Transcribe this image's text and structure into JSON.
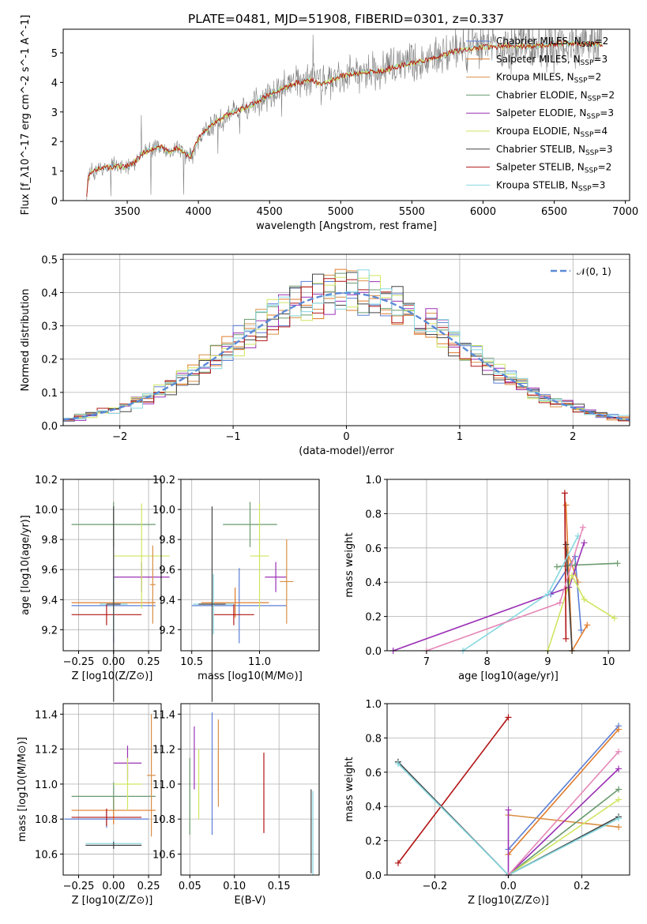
{
  "figure": {
    "title": "PLATE=0481, MJD=51908, FIBERID=0301, z=0.337"
  },
  "colors": {
    "Chabrier MILES": "#5b7fd6",
    "Salpeter MILES": "#e07b2a",
    "Kroupa MILES": "#d98f45",
    "Chabrier ELODIE": "#6a9a6e",
    "Salpeter ELODIE": "#9b30b5",
    "Kroupa ELODIE": "#cfe660",
    "Chabrier STELIB": "#444444",
    "Salpeter STELIB": "#b21414",
    "Kroupa STELIB": "#86d8e0",
    "normal": "#5b8ad6",
    "observed": "#808080"
  },
  "chart_data": [
    {
      "id": "spectrum",
      "type": "line",
      "xlabel": "wavelength [Angstrom, rest frame]",
      "ylabel": "Flux [f_λ10^-17 erg cm^-2 s^-1 A^-1]",
      "xlim": [
        3050,
        7030
      ],
      "ylim": [
        0,
        5.8
      ],
      "xticks": [
        "3500",
        "4000",
        "4500",
        "5000",
        "5500",
        "6000",
        "6500",
        "7000"
      ],
      "yticks": [
        "0",
        "1",
        "2",
        "3",
        "4",
        "5"
      ],
      "legend_position": "upper right",
      "legend": [
        {
          "name": "Chabrier MILES",
          "nssp": "2"
        },
        {
          "name": "Salpeter MILES",
          "nssp": "3"
        },
        {
          "name": "Kroupa MILES",
          "nssp": "2"
        },
        {
          "name": "Chabrier ELODIE",
          "nssp": "2"
        },
        {
          "name": "Salpeter ELODIE",
          "nssp": "3"
        },
        {
          "name": "Kroupa ELODIE",
          "nssp": "4"
        },
        {
          "name": "Chabrier STELIB",
          "nssp": "3"
        },
        {
          "name": "Salpeter STELIB",
          "nssp": "2"
        },
        {
          "name": "Kroupa STELIB",
          "nssp": "3"
        }
      ],
      "model_continuum": {
        "x": [
          3210,
          3230,
          3300,
          3400,
          3500,
          3550,
          3600,
          3650,
          3700,
          3750,
          3800,
          3850,
          3900,
          3950,
          4000,
          4100,
          4200,
          4300,
          4400,
          4500,
          4600,
          4700,
          4800,
          4860,
          4900,
          5000,
          5100,
          5200,
          5300,
          5400,
          5500,
          5600,
          5700,
          5800,
          5900,
          6000,
          6100,
          6200,
          6300,
          6400,
          6500,
          6600,
          6700,
          6830
        ],
        "y": [
          0.0,
          0.9,
          1.1,
          1.15,
          1.15,
          1.3,
          1.55,
          1.7,
          1.8,
          1.8,
          1.6,
          1.8,
          1.6,
          1.5,
          2.1,
          2.6,
          2.9,
          3.1,
          3.3,
          3.6,
          3.8,
          4.0,
          4.1,
          3.9,
          4.0,
          4.2,
          4.3,
          4.35,
          4.4,
          4.55,
          4.65,
          4.75,
          4.9,
          5.05,
          5.15,
          5.2,
          5.2,
          5.25,
          5.2,
          5.25,
          5.3,
          5.35,
          5.3,
          5.3
        ]
      }
    },
    {
      "id": "residual-histogram",
      "type": "line",
      "xlabel": "(data-model)/error",
      "ylabel": "Normed distribution",
      "xlim": [
        -2.5,
        2.5
      ],
      "ylim": [
        0,
        0.515
      ],
      "xticks": [
        "−2",
        "−1",
        "0",
        "1",
        "2"
      ],
      "yticks": [
        "0.0",
        "0.1",
        "0.2",
        "0.3",
        "0.4",
        "0.5"
      ],
      "grid": true,
      "legend": [
        "𝒩(0, 1)"
      ],
      "bin_width": 0.1,
      "bin_start": -2.5,
      "series": [
        {
          "name": "Chabrier MILES",
          "offset": 0.0
        },
        {
          "name": "Salpeter MILES",
          "offset": 0.015
        },
        {
          "name": "Kroupa MILES",
          "offset": -0.01
        },
        {
          "name": "Chabrier ELODIE",
          "offset": 0.02
        },
        {
          "name": "Salpeter ELODIE",
          "offset": -0.015
        },
        {
          "name": "Kroupa ELODIE",
          "offset": 0.01
        },
        {
          "name": "Chabrier STELIB",
          "offset": -0.02
        },
        {
          "name": "Salpeter STELIB",
          "offset": 0.005
        },
        {
          "name": "Kroupa STELIB",
          "offset": -0.005
        }
      ]
    },
    {
      "id": "z-age",
      "type": "scatter",
      "xlabel": "Z [log10(Z/Z⊙)]",
      "ylabel": "age [log10(age/yr)]",
      "xlim": [
        -0.36,
        0.34
      ],
      "ylim": [
        9.06,
        10.2
      ],
      "xticks": [
        "−0.25",
        "0.00",
        "0.25"
      ],
      "yticks": [
        "9.2",
        "9.4",
        "9.6",
        "9.8",
        "10.0",
        "10.2"
      ],
      "points": [
        {
          "series": "Chabrier MILES",
          "x": 0.0,
          "y": 9.36,
          "xerr": 0.3,
          "yerr": 0.25
        },
        {
          "series": "Salpeter MILES",
          "x": 0.0,
          "y": 9.38,
          "xerr": 0.3,
          "yerr": 0.1
        },
        {
          "series": "Chabrier ELODIE",
          "x": 0.0,
          "y": 9.9,
          "xerr": 0.3,
          "yerr": 0.15
        },
        {
          "series": "Salpeter ELODIE",
          "x": 0.2,
          "y": 9.55,
          "xerr": 0.2,
          "yerr": 0.1
        },
        {
          "series": "Kroupa ELODIE",
          "x": 0.2,
          "y": 9.69,
          "xerr": 0.2,
          "yerr": 0.35
        },
        {
          "series": "Salpeter STELIB",
          "x": -0.05,
          "y": 9.3,
          "xerr": 0.25,
          "yerr": 0.07
        },
        {
          "series": "Kroupa STELIB",
          "x": 0.0,
          "y": 9.37,
          "xerr": 0.1,
          "yerr": 0.2
        },
        {
          "series": "Chabrier STELIB",
          "x": 0.0,
          "y": 9.37,
          "xerr": 0.05,
          "yerr": 0.65
        },
        {
          "series": "Kroupa MILES",
          "x": 0.28,
          "y": 9.5,
          "xerr": 0.02,
          "yerr": 0.26
        }
      ]
    },
    {
      "id": "mass-age",
      "type": "scatter",
      "xlabel": "mass [log10(M/M⊙)]",
      "ylabel": "",
      "xlim": [
        10.42,
        11.44
      ],
      "ylim": [
        9.06,
        10.2
      ],
      "xticks": [
        "10.5",
        "11.0"
      ],
      "yticks": [
        "9.2",
        "9.4",
        "9.6",
        "9.8",
        "10.0",
        "10.2"
      ],
      "points": [
        {
          "series": "Chabrier MILES",
          "x": 10.85,
          "y": 9.36,
          "xerr": 0.35,
          "yerr": 0.25
        },
        {
          "series": "Salpeter MILES",
          "x": 10.82,
          "y": 9.38,
          "xerr": 0.25,
          "yerr": 0.1
        },
        {
          "series": "Chabrier ELODIE",
          "x": 10.93,
          "y": 9.9,
          "xerr": 0.2,
          "yerr": 0.15
        },
        {
          "series": "Salpeter ELODIE",
          "x": 11.12,
          "y": 9.55,
          "xerr": 0.08,
          "yerr": 0.1
        },
        {
          "series": "Kroupa ELODIE",
          "x": 11.0,
          "y": 9.69,
          "xerr": 0.07,
          "yerr": 0.35
        },
        {
          "series": "Salpeter STELIB",
          "x": 10.81,
          "y": 9.3,
          "xerr": 0.15,
          "yerr": 0.07
        },
        {
          "series": "Kroupa STELIB",
          "x": 10.66,
          "y": 9.37,
          "xerr": 0.15,
          "yerr": 0.2
        },
        {
          "series": "Chabrier STELIB",
          "x": 10.65,
          "y": 9.37,
          "xerr": 0.1,
          "yerr": 0.65
        },
        {
          "series": "Kroupa MILES",
          "x": 11.2,
          "y": 9.52,
          "xerr": 0.05,
          "yerr": 0.28
        }
      ]
    },
    {
      "id": "age-massweight",
      "type": "line",
      "xlabel": "age [log10(age/yr)]",
      "ylabel": "mass weight",
      "xlim": [
        6.35,
        10.35
      ],
      "ylim": [
        0,
        1.0
      ],
      "xticks": [
        "7",
        "8",
        "9",
        "10"
      ],
      "yticks": [
        "0.0",
        "0.2",
        "0.4",
        "0.6",
        "0.8",
        "1.0"
      ],
      "grid": true,
      "series": [
        {
          "name": "Chabrier MILES",
          "x": [
            9.05,
            9.45,
            9.55
          ],
          "y": [
            0.33,
            0.55,
            0.12
          ]
        },
        {
          "name": "Salpeter MILES",
          "x": [
            9.3,
            9.4,
            9.65
          ],
          "y": [
            0.85,
            0.0,
            0.15
          ]
        },
        {
          "name": "Kroupa MILES",
          "x": [
            9.3,
            9.5
          ],
          "y": [
            0.6,
            0.4
          ]
        },
        {
          "name": "Chabrier ELODIE",
          "x": [
            9.15,
            9.45,
            10.15
          ],
          "y": [
            0.49,
            0.5,
            0.51
          ]
        },
        {
          "name": "Salpeter ELODIE",
          "x": [
            6.45,
            9.35,
            9.6
          ],
          "y": [
            0.0,
            0.37,
            0.63
          ]
        },
        {
          "name": "Kroupa ELODIE",
          "x": [
            9.0,
            9.4,
            9.6,
            10.1
          ],
          "y": [
            0.0,
            0.44,
            0.3,
            0.19
          ]
        },
        {
          "name": "Chabrier STELIB",
          "x": [
            9.3,
            9.4
          ],
          "y": [
            0.62,
            0.0
          ]
        },
        {
          "name": "Salpeter STELIB",
          "x": [
            9.28,
            9.3
          ],
          "y": [
            0.92,
            0.07
          ]
        },
        {
          "name": "Kroupa STELIB",
          "x": [
            7.6,
            9.0,
            9.5
          ],
          "y": [
            0.0,
            0.33,
            0.67
          ]
        },
        {
          "name": "Kroupa MILES (pink)",
          "x": [
            7.0,
            9.2,
            9.58
          ],
          "y": [
            0.0,
            0.28,
            0.72
          ]
        }
      ]
    },
    {
      "id": "z-mass",
      "type": "scatter",
      "xlabel": "Z [log10(Z/Z⊙)]",
      "ylabel": "mass [log10(M/M⊙)]",
      "xlim": [
        -0.36,
        0.34
      ],
      "ylim": [
        10.48,
        11.46
      ],
      "xticks": [
        "−0.25",
        "0.00",
        "0.25"
      ],
      "yticks": [
        "10.6",
        "10.8",
        "11.0",
        "11.2",
        "11.4"
      ],
      "points": [
        {
          "series": "Chabrier MILES",
          "x": -0.05,
          "y": 10.8,
          "xerr": 0.3,
          "yerr": 0.05
        },
        {
          "series": "Salpeter MILES",
          "x": 0.0,
          "y": 10.85,
          "xerr": 0.3,
          "yerr": 0.08
        },
        {
          "series": "Chabrier ELODIE",
          "x": 0.0,
          "y": 10.93,
          "xerr": 0.3,
          "yerr": 0.08
        },
        {
          "series": "Salpeter ELODIE",
          "x": 0.1,
          "y": 11.12,
          "xerr": 0.1,
          "yerr": 0.1
        },
        {
          "series": "Kroupa ELODIE",
          "x": 0.1,
          "y": 11.0,
          "xerr": 0.1,
          "yerr": 0.15
        },
        {
          "series": "Salpeter STELIB",
          "x": -0.05,
          "y": 10.81,
          "xerr": 0.25,
          "yerr": 0.05
        },
        {
          "series": "Kroupa STELIB",
          "x": 0.0,
          "y": 10.66,
          "xerr": 0.2,
          "yerr": 0.02
        },
        {
          "series": "Chabrier STELIB",
          "x": 0.0,
          "y": 10.65,
          "xerr": 0.2,
          "yerr": 0.02
        },
        {
          "series": "Kroupa MILES",
          "x": 0.27,
          "y": 11.05,
          "xerr": 0.03,
          "yerr": 0.35
        }
      ]
    },
    {
      "id": "ebv-mass",
      "type": "scatter",
      "xlabel": "E(B-V)",
      "ylabel": "",
      "xlim": [
        0.04,
        0.195
      ],
      "ylim": [
        10.48,
        11.46
      ],
      "xticks": [
        "0.05",
        "0.10",
        "0.15"
      ],
      "yticks": [
        "10.6",
        "10.8",
        "11.0",
        "11.2",
        "11.4"
      ],
      "points": [
        {
          "series": "Chabrier MILES",
          "x": 0.075,
          "y": 11.06,
          "yerr": 0.35
        },
        {
          "series": "Salpeter MILES",
          "x": 0.082,
          "y": 11.08,
          "yerr": 0.12
        },
        {
          "series": "Kroupa MILES",
          "x": 0.082,
          "y": 11.12,
          "yerr": 0.25
        },
        {
          "series": "Chabrier ELODIE",
          "x": 0.05,
          "y": 10.93,
          "yerr": 0.22
        },
        {
          "series": "Salpeter ELODIE",
          "x": 0.055,
          "y": 11.15,
          "yerr": 0.18
        },
        {
          "series": "Kroupa ELODIE",
          "x": 0.06,
          "y": 11.0,
          "yerr": 0.2
        },
        {
          "series": "Salpeter STELIB",
          "x": 0.133,
          "y": 10.95,
          "yerr": 0.23
        },
        {
          "series": "Chabrier STELIB",
          "x": 0.186,
          "y": 10.73,
          "yerr": 0.24
        },
        {
          "series": "Kroupa STELIB",
          "x": 0.188,
          "y": 10.72,
          "yerr": 0.24
        }
      ]
    },
    {
      "id": "z-massweight",
      "type": "line",
      "xlabel": "Z [log10(Z/Z⊙)]",
      "ylabel": "mass weight",
      "xlim": [
        -0.33,
        0.33
      ],
      "ylim": [
        0,
        1.0
      ],
      "xticks": [
        "−0.2",
        "0.0",
        "0.2"
      ],
      "yticks": [
        "0.0",
        "0.2",
        "0.4",
        "0.6",
        "0.8",
        "1.0"
      ],
      "grid": true,
      "series": [
        {
          "name": "Chabrier MILES",
          "x": [
            0.0,
            0.3
          ],
          "y": [
            0.15,
            0.87
          ]
        },
        {
          "name": "Salpeter MILES",
          "x": [
            0.0,
            0.3
          ],
          "y": [
            0.12,
            0.85
          ]
        },
        {
          "name": "Kroupa MILES",
          "x": [
            0.0,
            0.3
          ],
          "y": [
            0.35,
            0.28
          ]
        },
        {
          "name": "Chabrier ELODIE",
          "x": [
            0.0,
            0.3
          ],
          "y": [
            0.0,
            0.5
          ]
        },
        {
          "name": "Salpeter ELODIE",
          "x": [
            0.0,
            0.0,
            0.3
          ],
          "y": [
            0.38,
            0.0,
            0.62
          ]
        },
        {
          "name": "Kroupa ELODIE",
          "x": [
            0.0,
            0.3
          ],
          "y": [
            0.0,
            0.44
          ]
        },
        {
          "name": "Chabrier STELIB",
          "x": [
            -0.3,
            0.0,
            0.3
          ],
          "y": [
            0.66,
            0.0,
            0.34
          ]
        },
        {
          "name": "Salpeter STELIB",
          "x": [
            -0.3,
            0.0
          ],
          "y": [
            0.07,
            0.92
          ]
        },
        {
          "name": "Kroupa STELIB",
          "x": [
            -0.3,
            0.0,
            0.3
          ],
          "y": [
            0.65,
            0.0,
            0.33
          ]
        },
        {
          "name": "Kroupa MILES (pink)",
          "x": [
            0.0,
            0.3
          ],
          "y": [
            0.0,
            0.72
          ]
        }
      ]
    }
  ]
}
